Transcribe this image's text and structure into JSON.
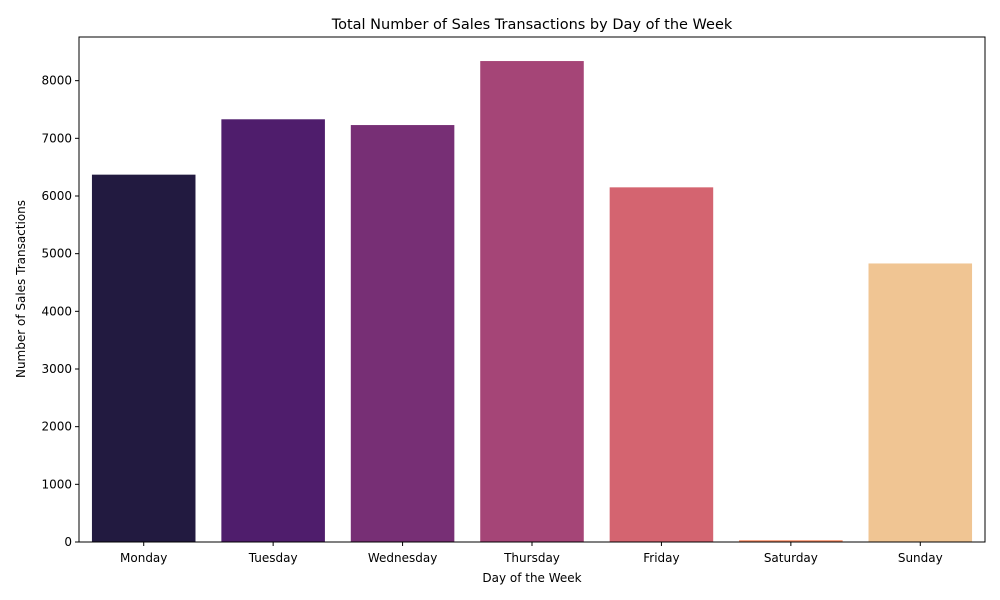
{
  "chart_data": {
    "type": "bar",
    "title": "Total Number of Sales Transactions by Day of the Week",
    "xlabel": "Day of the Week",
    "ylabel": "Number of Sales Transactions",
    "categories": [
      "Monday",
      "Tuesday",
      "Wednesday",
      "Thursday",
      "Friday",
      "Saturday",
      "Sunday"
    ],
    "values": [
      6370,
      7330,
      7230,
      8340,
      6150,
      30,
      4830
    ],
    "colors": [
      "#221a40",
      "#4f1d6c",
      "#772f75",
      "#a54577",
      "#d46470",
      "#f8875e",
      "#f0c593"
    ],
    "yticks": [
      0,
      1000,
      2000,
      3000,
      4000,
      5000,
      6000,
      7000,
      8000
    ],
    "ylim": [
      0,
      8757
    ],
    "grid": false,
    "legend": "none"
  }
}
